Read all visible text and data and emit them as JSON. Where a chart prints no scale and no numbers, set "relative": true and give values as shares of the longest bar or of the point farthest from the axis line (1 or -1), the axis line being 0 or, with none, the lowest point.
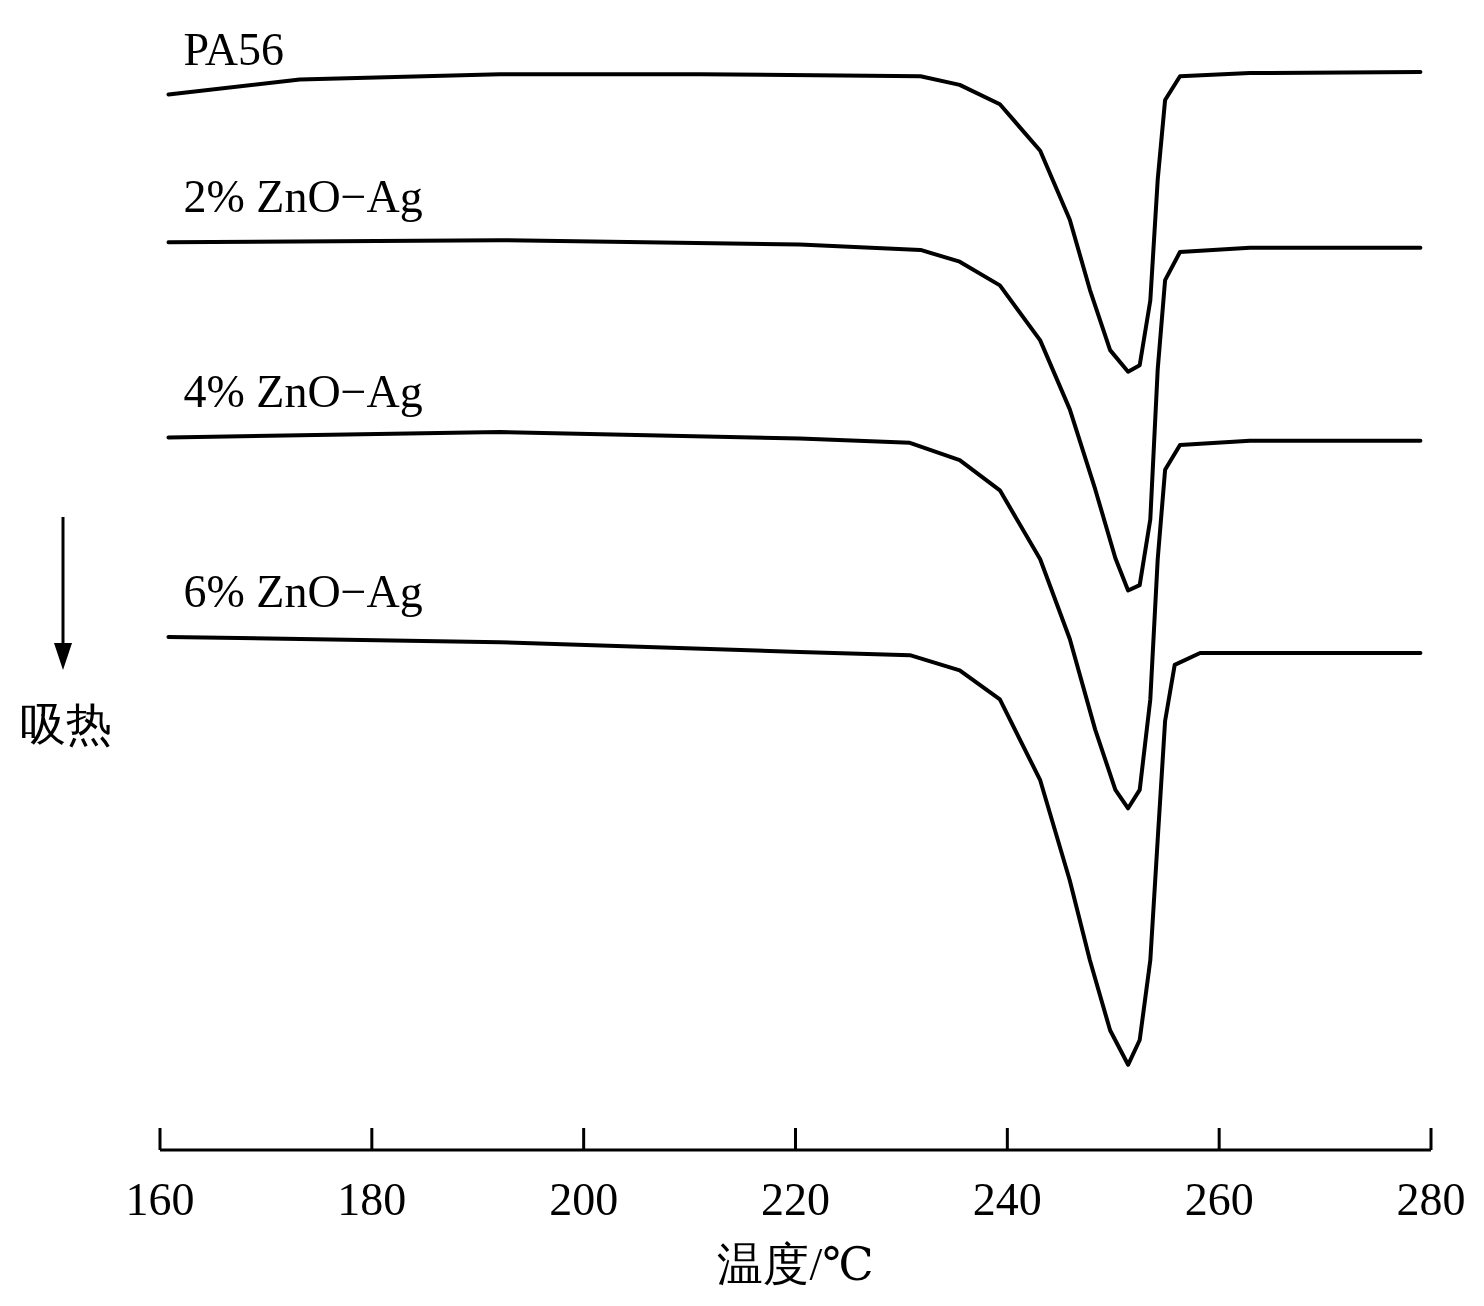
{
  "chart_data": {
    "type": "line",
    "relative": true,
    "xlabel": "温度/℃",
    "xlim": [
      160,
      280
    ],
    "xticks": [
      160,
      180,
      200,
      220,
      240,
      260,
      280
    ],
    "tick_labels": "x",
    "line_style": "solid",
    "annotations": [
      "吸热"
    ],
    "series": [
      {
        "name": "PA56",
        "color": "#000000",
        "x": [
          160.8,
          173.2,
          192.1,
          211.0,
          231.8,
          235.5,
          239.3,
          243.1,
          245.9,
          247.8,
          249.7,
          251.4,
          252.5,
          253.5,
          254.2,
          254.9,
          256.3,
          262.9,
          279.0
        ],
        "values": [
          0.979,
          0.993,
          0.998,
          0.998,
          0.996,
          0.988,
          0.97,
          0.927,
          0.863,
          0.798,
          0.742,
          0.722,
          0.728,
          0.788,
          0.9,
          0.974,
          0.996,
          0.999,
          1.0
        ]
      },
      {
        "name": "2% ZnO−Ag",
        "color": "#000000",
        "x": [
          160.8,
          192.1,
          220.4,
          231.8,
          235.5,
          239.3,
          243.1,
          245.9,
          248.3,
          250.2,
          251.4,
          252.5,
          253.5,
          254.2,
          254.9,
          256.3,
          262.9,
          279.0
        ],
        "values": [
          0.842,
          0.844,
          0.84,
          0.835,
          0.824,
          0.802,
          0.751,
          0.687,
          0.613,
          0.549,
          0.519,
          0.524,
          0.585,
          0.724,
          0.807,
          0.833,
          0.837,
          0.837
        ]
      },
      {
        "name": "4% ZnO−Ag",
        "color": "#000000",
        "x": [
          160.8,
          192.1,
          220.4,
          230.8,
          235.5,
          239.3,
          243.1,
          245.9,
          248.3,
          250.2,
          251.4,
          252.5,
          253.5,
          254.2,
          254.9,
          256.3,
          262.9,
          279.0
        ],
        "values": [
          0.661,
          0.666,
          0.66,
          0.656,
          0.64,
          0.612,
          0.548,
          0.474,
          0.39,
          0.334,
          0.317,
          0.334,
          0.418,
          0.548,
          0.631,
          0.654,
          0.658,
          0.658
        ]
      },
      {
        "name": "6% ZnO−Ag",
        "color": "#000000",
        "x": [
          160.8,
          192.1,
          220.4,
          230.8,
          235.5,
          239.3,
          243.1,
          245.9,
          247.8,
          249.7,
          251.4,
          252.5,
          253.5,
          254.2,
          254.9,
          255.8,
          258.2,
          279.0
        ],
        "values": [
          0.476,
          0.471,
          0.462,
          0.459,
          0.445,
          0.418,
          0.343,
          0.25,
          0.176,
          0.111,
          0.079,
          0.102,
          0.176,
          0.288,
          0.398,
          0.45,
          0.461,
          0.461
        ]
      }
    ]
  }
}
